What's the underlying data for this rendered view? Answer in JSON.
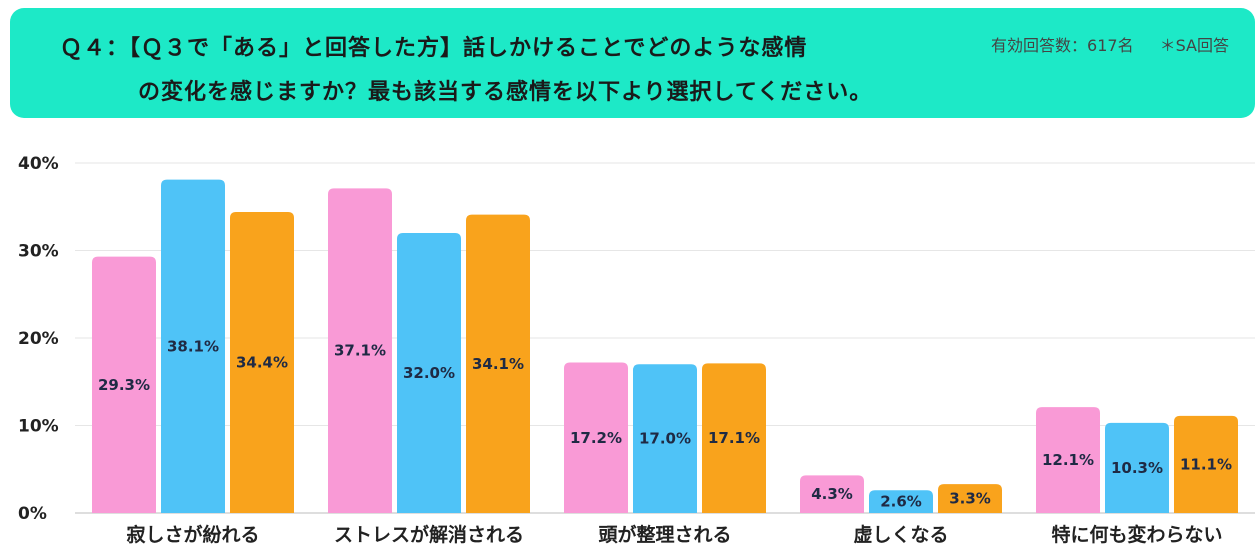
{
  "header": {
    "line1": "Ｑ４：【Ｑ３で「ある」と回答した方】話しかけることでどのような感情",
    "line2": "の変化を感じますか？最も該当する感情を以下より選択してください。",
    "respondents": "有効回答数：617名",
    "answer_type": "＊SA回答"
  },
  "chart_data": {
    "type": "bar",
    "title": "",
    "xlabel": "",
    "ylabel": "",
    "ylim": [
      0,
      40
    ],
    "yticks": [
      "0%",
      "10%",
      "20%",
      "30%",
      "40%"
    ],
    "categories": [
      "寂しさが紛れる",
      "ストレスが解消される",
      "頭が整理される",
      "虚しくなる",
      "特に何も変わらない"
    ],
    "series": [
      {
        "color": "#f99ad6",
        "values": [
          29.3,
          37.1,
          17.2,
          4.3,
          12.1
        ],
        "labels": [
          "29.3%",
          "37.1%",
          "17.2%",
          "4.3%",
          "12.1%"
        ]
      },
      {
        "color": "#4fc3f7",
        "values": [
          38.1,
          32.0,
          17.0,
          2.6,
          10.3
        ],
        "labels": [
          "38.1%",
          "32.0%",
          "17.0%",
          "2.6%",
          "10.3%"
        ]
      },
      {
        "color": "#f9a31c",
        "values": [
          34.4,
          34.1,
          17.1,
          3.3,
          11.1
        ],
        "labels": [
          "34.4%",
          "34.1%",
          "17.1%",
          "3.3%",
          "11.1%"
        ]
      }
    ],
    "grid": true,
    "legend": "none"
  }
}
